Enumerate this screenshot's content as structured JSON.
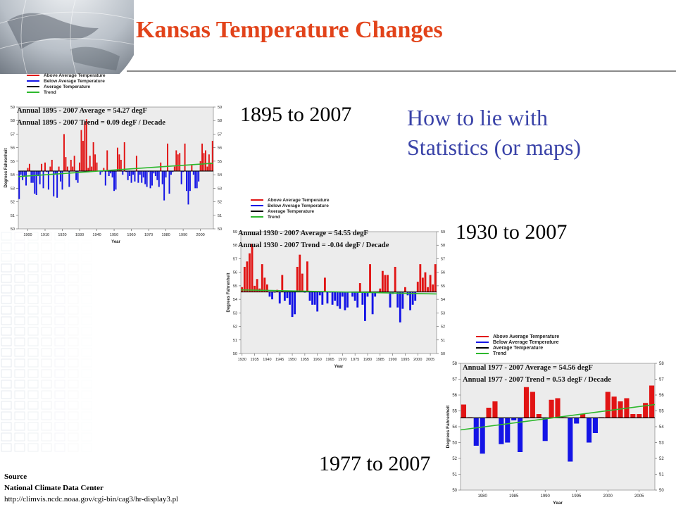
{
  "slide": {
    "title": "Kansas Temperature Changes",
    "periods": [
      "1895 to 2007",
      "1930 to 2007",
      "1977 to 2007"
    ],
    "note_lines": [
      "How to lie with",
      "Statistics (or maps)"
    ],
    "source": {
      "heading": "Source",
      "org": "National Climate Data Center",
      "url": "http://climvis.ncdc.noaa.gov/cgi-bin/cag3/hr-display3.pl"
    }
  },
  "colors": {
    "title": "#e2431a",
    "note": "#3a43a8",
    "above": "#e11414",
    "below": "#1414e6",
    "average": "#000000",
    "trend": "#2db82d",
    "plot_bg": "#ececec"
  },
  "chart_data": [
    {
      "type": "bar",
      "legend": [
        "Above Average Temperature",
        "Below Average Temperature",
        "Average Temperature",
        "Trend"
      ],
      "annotations": [
        "Annual 1895 - 2007 Average = 54.27 degF",
        "Annual 1895 - 2007 Trend = 0.09 degF / Decade"
      ],
      "xlabel": "Year",
      "ylabel": "Degrees Fahrenheit",
      "xlim": [
        1895,
        2007
      ],
      "ylim": [
        50,
        59
      ],
      "xticks": [
        1900,
        1910,
        1920,
        1930,
        1940,
        1950,
        1960,
        1970,
        1980,
        1990,
        2000
      ],
      "yticks": [
        50,
        51,
        52,
        53,
        54,
        55,
        56,
        57,
        58,
        59
      ],
      "average": 54.27,
      "trend": [
        53.86,
        54.85
      ],
      "x": [
        1895,
        1896,
        1897,
        1898,
        1899,
        1900,
        1901,
        1902,
        1903,
        1904,
        1905,
        1906,
        1907,
        1908,
        1909,
        1910,
        1911,
        1912,
        1913,
        1914,
        1915,
        1916,
        1917,
        1918,
        1919,
        1920,
        1921,
        1922,
        1923,
        1924,
        1925,
        1926,
        1927,
        1928,
        1929,
        1930,
        1931,
        1932,
        1933,
        1934,
        1935,
        1936,
        1937,
        1938,
        1939,
        1940,
        1941,
        1942,
        1943,
        1944,
        1945,
        1946,
        1947,
        1948,
        1949,
        1950,
        1951,
        1952,
        1953,
        1954,
        1955,
        1956,
        1957,
        1958,
        1959,
        1960,
        1961,
        1962,
        1963,
        1964,
        1965,
        1966,
        1967,
        1968,
        1969,
        1970,
        1971,
        1972,
        1973,
        1974,
        1975,
        1976,
        1977,
        1978,
        1979,
        1980,
        1981,
        1982,
        1983,
        1984,
        1985,
        1986,
        1987,
        1988,
        1989,
        1990,
        1991,
        1992,
        1993,
        1994,
        1995,
        1996,
        1997,
        1998,
        1999,
        2000,
        2001,
        2002,
        2003,
        2004,
        2005,
        2006,
        2007
      ],
      "values": [
        52.2,
        54.0,
        53.6,
        53.9,
        53.2,
        54.5,
        54.8,
        53.4,
        53.4,
        52.6,
        52.5,
        53.9,
        53.3,
        54.8,
        53.0,
        54.9,
        54.2,
        52.9,
        54.6,
        55.1,
        52.4,
        54.0,
        52.3,
        54.6,
        53.5,
        52.9,
        57.0,
        55.3,
        54.6,
        53.1,
        55.1,
        54.6,
        55.4,
        53.6,
        53.4,
        54.9,
        57.3,
        56.5,
        57.9,
        58.1,
        54.5,
        55.4,
        54.6,
        56.4,
        55.5,
        54.9,
        54.3,
        54.0,
        54.2,
        54.5,
        53.2,
        55.8,
        53.9,
        54.1,
        53.8,
        52.8,
        52.9,
        56.0,
        55.5,
        55.1,
        54.0,
        56.4,
        54.2,
        53.6,
        53.9,
        53.4,
        54.0,
        53.5,
        55.4,
        53.4,
        54.0,
        53.4,
        53.8,
        53.3,
        53.1,
        54.2,
        53.0,
        53.2,
        54.1,
        53.9,
        53.6,
        53.1,
        54.9,
        53.3,
        52.1,
        53.8,
        56.3,
        52.6,
        54.0,
        54.2,
        54.6,
        55.8,
        55.5,
        55.6,
        53.3,
        54.2,
        56.3,
        52.8,
        51.8,
        52.8,
        54.7,
        54.0,
        53.0,
        53.0,
        53.5,
        55.0,
        56.3,
        55.6,
        55.8,
        54.6,
        55.5,
        54.9,
        56.5
      ]
    },
    {
      "type": "bar",
      "legend": [
        "Above Average Temperature",
        "Below Average Temperature",
        "Average Temperature",
        "Trend"
      ],
      "annotations": [
        "Annual 1930 - 2007 Average = 54.55 degF",
        "Annual 1930 - 2007 Trend = -0.04 degF / Decade"
      ],
      "xlabel": "Year",
      "ylabel": "Degrees Fahrenheit",
      "xlim": [
        1930,
        2007
      ],
      "ylim": [
        50,
        59
      ],
      "xticks": [
        1930,
        1935,
        1940,
        1945,
        1950,
        1955,
        1960,
        1965,
        1970,
        1975,
        1980,
        1985,
        1990,
        1995,
        2000,
        2005
      ],
      "yticks": [
        50,
        51,
        52,
        53,
        54,
        55,
        56,
        57,
        58,
        59
      ],
      "average": 54.55,
      "trend": [
        54.7,
        54.4
      ],
      "x": [
        1930,
        1931,
        1932,
        1933,
        1934,
        1935,
        1936,
        1937,
        1938,
        1939,
        1940,
        1941,
        1942,
        1943,
        1944,
        1945,
        1946,
        1947,
        1948,
        1949,
        1950,
        1951,
        1952,
        1953,
        1954,
        1955,
        1956,
        1957,
        1958,
        1959,
        1960,
        1961,
        1962,
        1963,
        1964,
        1965,
        1966,
        1967,
        1968,
        1969,
        1970,
        1971,
        1972,
        1973,
        1974,
        1975,
        1976,
        1977,
        1978,
        1979,
        1980,
        1981,
        1982,
        1983,
        1984,
        1985,
        1986,
        1987,
        1988,
        1989,
        1990,
        1991,
        1992,
        1993,
        1994,
        1995,
        1996,
        1997,
        1998,
        1999,
        2000,
        2001,
        2002,
        2003,
        2004,
        2005,
        2006,
        2007
      ],
      "values": [
        54.9,
        56.4,
        56.8,
        57.4,
        58.1,
        55.0,
        55.5,
        54.8,
        56.6,
        55.6,
        55.1,
        54.2,
        54.0,
        54.5,
        54.7,
        53.7,
        55.8,
        53.9,
        54.1,
        53.6,
        52.7,
        52.9,
        56.4,
        57.3,
        55.9,
        54.5,
        56.8,
        53.9,
        53.6,
        53.6,
        53.1,
        54.3,
        53.6,
        55.6,
        53.7,
        54.5,
        53.6,
        53.9,
        53.5,
        53.3,
        54.2,
        53.2,
        53.4,
        54.5,
        54.2,
        53.9,
        53.4,
        55.2,
        53.6,
        52.4,
        54.2,
        56.6,
        52.9,
        54.2,
        54.5,
        54.8,
        56.1,
        55.8,
        55.8,
        53.4,
        54.4,
        56.4,
        53.4,
        52.3,
        53.3,
        54.9,
        54.3,
        53.2,
        53.6,
        53.9,
        55.3,
        56.6,
        55.6,
        56.0,
        54.9,
        55.8,
        55.1,
        56.6
      ]
    },
    {
      "type": "bar",
      "legend": [
        "Above Average Temperature",
        "Below Average Temperature",
        "Average Temperature",
        "Trend"
      ],
      "annotations": [
        "Annual 1977 - 2007 Average = 54.56 degF",
        "Annual 1977 - 2007 Trend = 0.53 degF / Decade"
      ],
      "xlabel": "Year",
      "ylabel": "Degrees Fahrenheit",
      "xlim": [
        1977,
        2007
      ],
      "ylim": [
        50,
        58
      ],
      "xticks": [
        1980,
        1985,
        1990,
        1995,
        2000,
        2005
      ],
      "yticks": [
        50,
        51,
        52,
        53,
        54,
        55,
        56,
        57,
        58
      ],
      "average": 54.56,
      "trend": [
        53.8,
        55.4
      ],
      "x": [
        1977,
        1978,
        1979,
        1980,
        1981,
        1982,
        1983,
        1984,
        1985,
        1986,
        1987,
        1988,
        1989,
        1990,
        1991,
        1992,
        1993,
        1994,
        1995,
        1996,
        1997,
        1998,
        1999,
        2000,
        2001,
        2002,
        2003,
        2004,
        2005,
        2006,
        2007
      ],
      "values": [
        55.4,
        54.6,
        52.8,
        52.3,
        55.2,
        55.6,
        52.9,
        53.0,
        54.4,
        52.4,
        56.5,
        56.2,
        54.8,
        53.1,
        55.7,
        55.8,
        54.6,
        51.8,
        54.2,
        54.8,
        53.0,
        53.6,
        54.6,
        56.2,
        55.9,
        55.6,
        55.8,
        54.8,
        54.8,
        55.5,
        56.6
      ]
    }
  ]
}
